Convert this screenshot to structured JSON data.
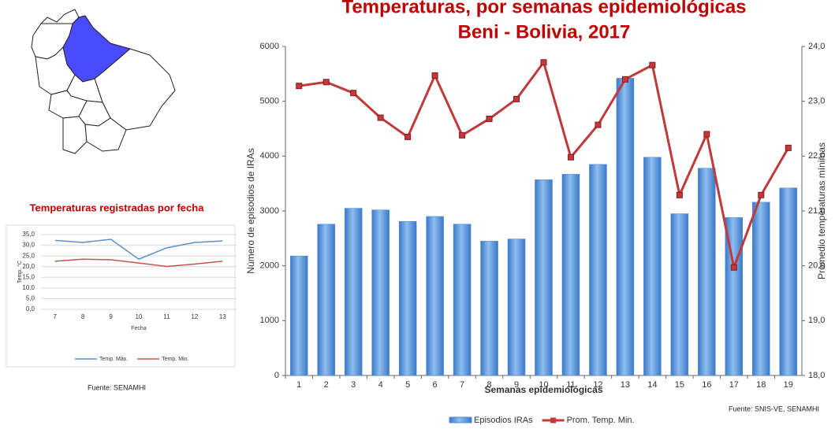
{
  "chart_data": [
    {
      "type": "bar",
      "title": "Temperaturas, por semanas epidemiológicas",
      "subtitle": "Beni - Bolivia, 2017",
      "xlabel": "Semanas epidemiológicas",
      "ylabel": "Número de episodios de IRAs",
      "y2label": "Promedio temperaturas mínimas",
      "categories": [
        "1",
        "2",
        "3",
        "4",
        "5",
        "6",
        "7",
        "8",
        "9",
        "10",
        "11",
        "12",
        "13",
        "14",
        "15",
        "16",
        "17",
        "18",
        "19"
      ],
      "series": [
        {
          "name": "Episodios IRAs",
          "color": "#4f8fd8",
          "type": "bar",
          "values": [
            2180,
            2760,
            3050,
            3020,
            2810,
            2900,
            2760,
            2450,
            2490,
            3570,
            3670,
            3850,
            5420,
            3980,
            2950,
            3780,
            2880,
            3160,
            3420
          ]
        },
        {
          "name": "Prom. Temp. Min.",
          "color": "#c0393b",
          "type": "line",
          "axis": "y2",
          "values": [
            23.28,
            23.35,
            23.15,
            22.7,
            22.35,
            23.47,
            22.38,
            22.68,
            23.04,
            23.71,
            21.98,
            22.57,
            23.4,
            23.66,
            21.29,
            22.4,
            19.97,
            21.29,
            22.15
          ]
        }
      ],
      "ylim": [
        0,
        6000
      ],
      "yticks": [
        0,
        1000,
        2000,
        3000,
        4000,
        5000,
        6000
      ],
      "y2lim": [
        18,
        24
      ],
      "y2ticks": [
        {
          "value": 18,
          "label": "18,0"
        },
        {
          "value": 19,
          "label": "19,0"
        },
        {
          "value": 20,
          "label": "20,0"
        },
        {
          "value": 21,
          "label": "21,0"
        },
        {
          "value": 22,
          "label": "22,0"
        },
        {
          "value": 23,
          "label": "23,0"
        },
        {
          "value": 24,
          "label": "24,0"
        }
      ],
      "grid": false,
      "source": "Fuente: SNIS-VE, SENAMHI"
    },
    {
      "type": "line",
      "title": "Temperaturas registradas por fecha",
      "xlabel": "Fecha",
      "ylabel": "Temp. °C",
      "categories": [
        "7",
        "8",
        "9",
        "10",
        "11",
        "12",
        "13"
      ],
      "series": [
        {
          "name": "Temp. Máx.",
          "color": "#5b8fc6",
          "values": [
            32.3,
            31.3,
            32.8,
            23.5,
            28.8,
            31.3,
            32.0
          ]
        },
        {
          "name": "Temp. Min.",
          "color": "#c9524e",
          "values": [
            22.5,
            23.5,
            23.2,
            21.7,
            20.1,
            21.2,
            22.5
          ]
        }
      ],
      "ylim": [
        0,
        35
      ],
      "yticks": [
        {
          "value": 0,
          "label": "0,0"
        },
        {
          "value": 5,
          "label": "5,0"
        },
        {
          "value": 10,
          "label": "10,0"
        },
        {
          "value": 15,
          "label": "15,0"
        },
        {
          "value": 20,
          "label": "20,0"
        },
        {
          "value": 25,
          "label": "25,0"
        },
        {
          "value": 30,
          "label": "30,0"
        },
        {
          "value": 35,
          "label": "35,0"
        }
      ],
      "grid": true,
      "source": "Fuente: SENAMHI"
    }
  ]
}
